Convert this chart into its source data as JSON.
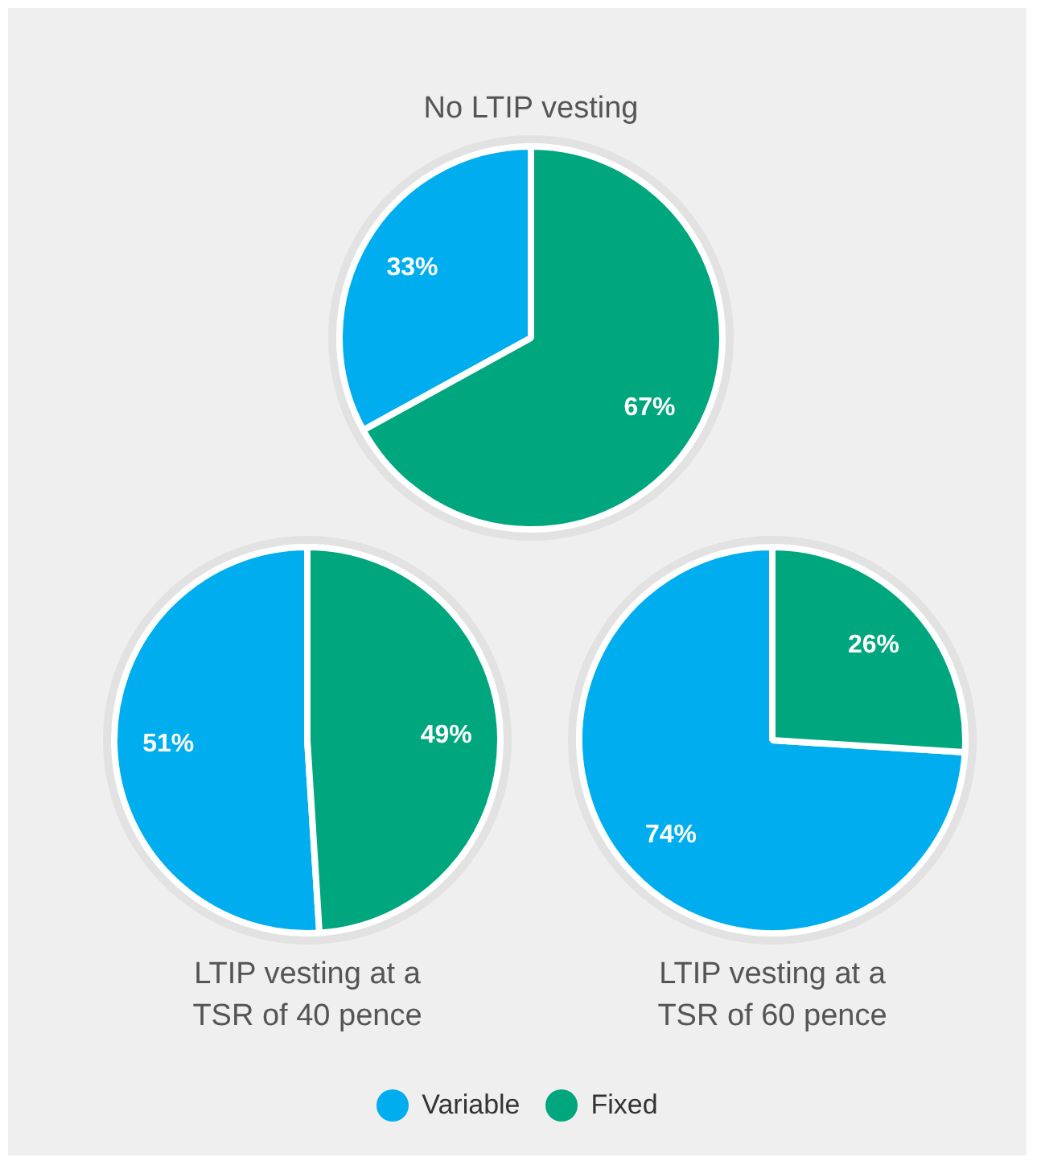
{
  "chart_data": [
    {
      "type": "pie",
      "title": "No LTIP vesting",
      "categories": [
        "Variable",
        "Fixed"
      ],
      "values": [
        33,
        67
      ],
      "value_labels": [
        "33%",
        "67%"
      ],
      "colors": [
        "#00aeef",
        "#00a67e"
      ],
      "legend": "bottom"
    },
    {
      "type": "pie",
      "title": "LTIP vesting at a\nTSR of 40 pence",
      "categories": [
        null,
        null
      ],
      "values": [
        51,
        49
      ],
      "value_labels": [
        "51%",
        "49%"
      ],
      "colors": [
        "#00aeef",
        "#00a67e"
      ]
    },
    {
      "type": "pie",
      "title": "LTIP vesting at a\nTSR of 60 pence",
      "categories": [
        null,
        null
      ],
      "values": [
        74,
        26
      ],
      "value_labels": [
        "74%",
        "26%"
      ],
      "colors": [
        "#00aeef",
        "#00a67e"
      ]
    }
  ]
}
